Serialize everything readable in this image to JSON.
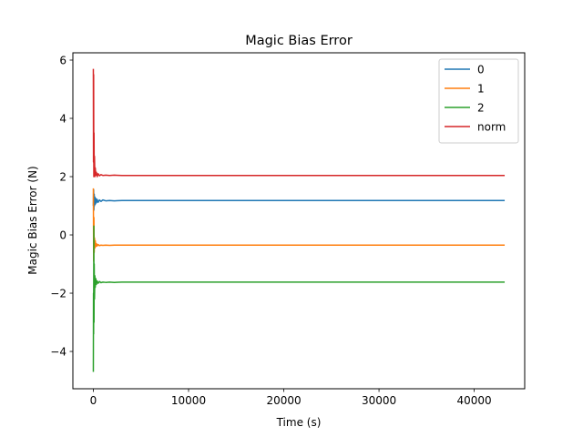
{
  "chart_data": {
    "type": "line",
    "title": "Magic Bias Error",
    "xlabel": "Time (s)",
    "ylabel": "Magic Bias Error (N)",
    "xlim": [
      -2150,
      45300
    ],
    "ylim": [
      -5.28,
      6.25
    ],
    "xticks": [
      0,
      10000,
      20000,
      30000,
      40000
    ],
    "xtick_labels": [
      "0",
      "10000",
      "20000",
      "30000",
      "40000"
    ],
    "yticks": [
      -4,
      -2,
      0,
      2,
      4,
      6
    ],
    "ytick_labels": [
      "−4",
      "−2",
      "0",
      "2",
      "4",
      "6"
    ],
    "grid": false,
    "legend_position": "top-right",
    "series": [
      {
        "name": "0",
        "color": "#1f77b4",
        "x": [
          0,
          30,
          60,
          90,
          120,
          160,
          200,
          260,
          320,
          400,
          500,
          650,
          800,
          1000,
          1300,
          1700,
          2200,
          3000,
          5000,
          10000,
          20000,
          30000,
          43200
        ],
        "y": [
          1.0,
          1.55,
          0.85,
          1.4,
          1.0,
          1.3,
          1.05,
          1.25,
          1.1,
          1.22,
          1.12,
          1.2,
          1.15,
          1.2,
          1.17,
          1.18,
          1.17,
          1.18,
          1.18,
          1.18,
          1.18,
          1.18,
          1.18
        ]
      },
      {
        "name": "1",
        "color": "#ff7f0e",
        "x": [
          0,
          30,
          60,
          90,
          120,
          160,
          200,
          260,
          320,
          400,
          500,
          650,
          800,
          1000,
          1300,
          1700,
          2200,
          3000,
          5000,
          10000,
          20000,
          30000,
          43200
        ],
        "y": [
          1.6,
          -0.9,
          0.6,
          -0.6,
          -0.1,
          -0.45,
          -0.2,
          -0.4,
          -0.3,
          -0.38,
          -0.33,
          -0.37,
          -0.35,
          -0.36,
          -0.35,
          -0.36,
          -0.35,
          -0.35,
          -0.35,
          -0.35,
          -0.35,
          -0.35,
          -0.35
        ]
      },
      {
        "name": "2",
        "color": "#2ca02c",
        "x": [
          0,
          15,
          30,
          50,
          70,
          90,
          120,
          160,
          200,
          260,
          320,
          400,
          500,
          650,
          800,
          1000,
          1300,
          1700,
          2200,
          3000,
          5000,
          10000,
          20000,
          30000,
          43200
        ],
        "y": [
          -4.7,
          -2.0,
          -3.4,
          0.3,
          -3.0,
          -1.0,
          -2.2,
          -1.4,
          -1.8,
          -1.5,
          -1.7,
          -1.58,
          -1.66,
          -1.6,
          -1.64,
          -1.62,
          -1.63,
          -1.62,
          -1.63,
          -1.62,
          -1.62,
          -1.62,
          -1.62,
          -1.62,
          -1.62
        ]
      },
      {
        "name": "norm",
        "color": "#d62728",
        "x": [
          0,
          15,
          30,
          50,
          70,
          90,
          120,
          160,
          200,
          260,
          320,
          400,
          500,
          650,
          800,
          1000,
          1300,
          1700,
          2200,
          3000,
          5000,
          10000,
          20000,
          30000,
          43200
        ],
        "y": [
          5.7,
          2.5,
          5.5,
          2.0,
          3.5,
          2.1,
          2.7,
          2.0,
          2.3,
          2.05,
          2.15,
          2.0,
          2.1,
          2.03,
          2.07,
          2.04,
          2.05,
          2.04,
          2.05,
          2.04,
          2.04,
          2.04,
          2.04,
          2.04,
          2.04
        ]
      }
    ]
  }
}
